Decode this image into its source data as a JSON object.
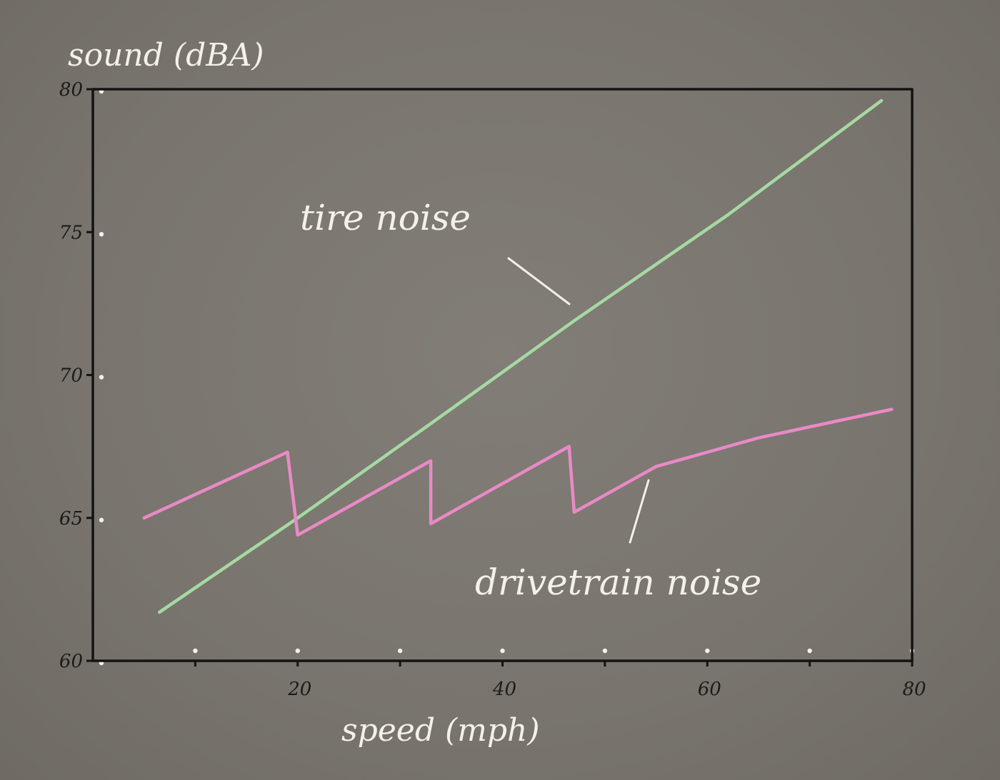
{
  "chart_data": {
    "type": "line",
    "title": "",
    "xlabel": "speed (mph)",
    "ylabel": "sound (dBA)",
    "xlim": [
      0,
      80
    ],
    "ylim": [
      60,
      80
    ],
    "x_ticks": [
      20,
      40,
      60,
      80
    ],
    "y_ticks": [
      60,
      65,
      70,
      75,
      80
    ],
    "grid": false,
    "legend": "none",
    "series": [
      {
        "name": "tire noise",
        "color": "#a6d9a3",
        "points": [
          [
            6.5,
            61.7
          ],
          [
            20,
            65.0
          ],
          [
            33,
            68.3
          ],
          [
            47,
            71.9
          ],
          [
            62,
            75.6
          ],
          [
            77,
            79.6
          ]
        ]
      },
      {
        "name": "drivetrain noise",
        "color": "#e98ac6",
        "points": [
          [
            5,
            65.0
          ],
          [
            19,
            67.3
          ],
          [
            20,
            64.4
          ],
          [
            33,
            67.0
          ],
          [
            33,
            64.8
          ],
          [
            46.5,
            67.5
          ],
          [
            47,
            65.2
          ],
          [
            55,
            66.8
          ],
          [
            65,
            67.8
          ],
          [
            78,
            68.8
          ]
        ]
      }
    ],
    "annotations": [
      {
        "text": "tire noise",
        "series": "tire noise"
      },
      {
        "text": "drivetrain noise",
        "series": "drivetrain noise"
      }
    ]
  }
}
